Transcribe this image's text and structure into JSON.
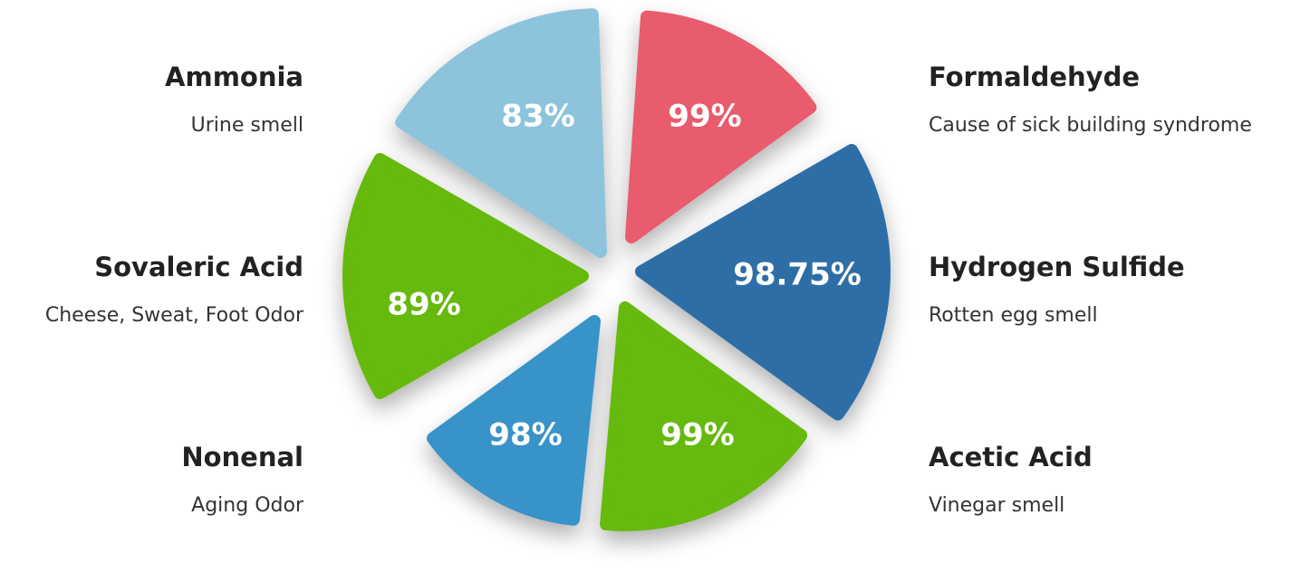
{
  "segments": [
    {
      "name": "Ammonia",
      "description": "Urine smell",
      "label": "83%",
      "color": "#8dc4dc"
    },
    {
      "name": "Formaldehyde",
      "description": "Cause of sick building syndrome",
      "label": "99%",
      "color": "#e85c6d"
    },
    {
      "name": "Hydrogen Sulfide",
      "description": "Rotten egg smell",
      "label": "98.75%",
      "color": "#2e6ea6"
    },
    {
      "name": "Acetic Acid",
      "description": "Vinegar smell",
      "label": "99%",
      "color": "#66b910"
    },
    {
      "name": "Nonenal",
      "description": "Aging Odor",
      "label": "98%",
      "color": "#3993c8"
    },
    {
      "name": "Sovaleric Acid",
      "description": "Cheese, Sweat, Foot Odor",
      "label": "89%",
      "color": "#66b910"
    }
  ]
}
